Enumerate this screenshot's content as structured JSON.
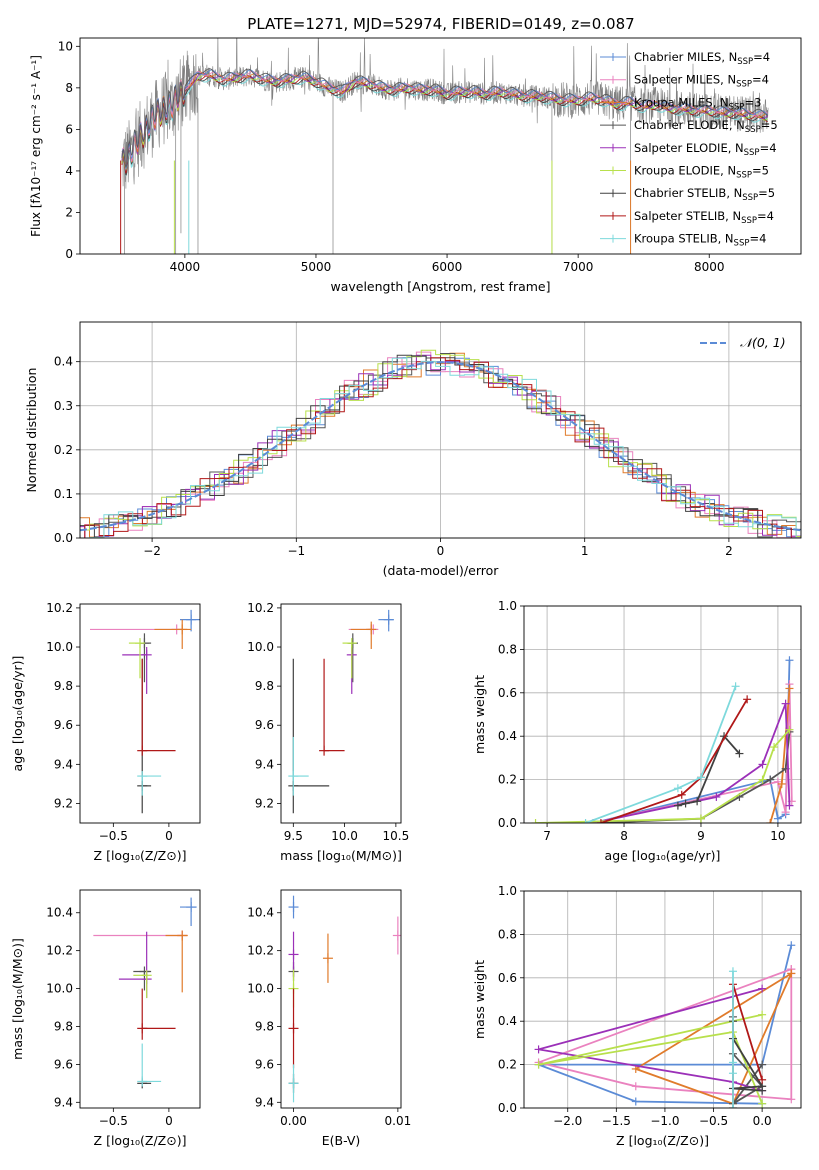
{
  "figure": {
    "title": "PLATE=1271, MJD=52974, FIBERID=0149, z=0.087"
  },
  "colors": {
    "cm": "#5b8bd6",
    "sm": "#ea82bf",
    "km": "#e07b2b",
    "ce": "#555555",
    "se": "#9b30b8",
    "ke": "#b8e04c",
    "cs": "#404040",
    "ss": "#b01818",
    "ks": "#7ed9dc",
    "obs": "#808080",
    "grid": "#b0b0b0"
  },
  "models": [
    {
      "key": "cm",
      "label": "Chabrier MILES, N",
      "sub": "SSP",
      "n": "=4"
    },
    {
      "key": "sm",
      "label": "Salpeter MILES, N",
      "sub": "SSP",
      "n": "=4"
    },
    {
      "key": "km",
      "label": "Kroupa MILES, N",
      "sub": "SSP",
      "n": "=3"
    },
    {
      "key": "ce",
      "label": "Chabrier ELODIE, N",
      "sub": "SSP",
      "n": "=5"
    },
    {
      "key": "se",
      "label": "Salpeter ELODIE, N",
      "sub": "SSP",
      "n": "=4"
    },
    {
      "key": "ke",
      "label": "Kroupa ELODIE, N",
      "sub": "SSP",
      "n": "=5"
    },
    {
      "key": "cs",
      "label": "Chabrier STELIB, N",
      "sub": "SSP",
      "n": "=5"
    },
    {
      "key": "ss",
      "label": "Salpeter STELIB, N",
      "sub": "SSP",
      "n": "=4"
    },
    {
      "key": "ks",
      "label": "Kroupa STELIB, N",
      "sub": "SSP",
      "n": "=4"
    }
  ],
  "chart_data": [
    {
      "id": "spectrum",
      "type": "line",
      "title": "PLATE=1271, MJD=52974, FIBERID=0149, z=0.087",
      "xlabel": "wavelength [Angstrom, rest frame]",
      "ylabel": "Flux [fλ10⁻¹⁷ erg cm⁻² s⁻¹ A⁻¹]",
      "xlim": [
        3200,
        8700
      ],
      "ylim": [
        0,
        10.4
      ],
      "xticks": [
        4000,
        5000,
        6000,
        7000,
        8000
      ],
      "yticks": [
        0,
        2,
        4,
        6,
        8,
        10
      ],
      "continuum": {
        "x": [
          3520,
          3560,
          3620,
          3700,
          3750,
          3800,
          3850,
          3900,
          3950,
          4000,
          4050,
          4100,
          4200,
          4300,
          4400,
          4500,
          4600,
          4700,
          4800,
          4900,
          5000,
          5100,
          5200,
          5300,
          5400,
          5500,
          5600,
          5700,
          5800,
          5900,
          6000,
          6100,
          6200,
          6300,
          6400,
          6500,
          6600,
          6700,
          6800,
          6900,
          7000,
          7100,
          7200,
          7300,
          7400,
          7500,
          7600,
          7700,
          7800,
          7900,
          8000,
          8100,
          8200,
          8300,
          8450
        ],
        "y": [
          4.4,
          4.6,
          5.2,
          6.0,
          6.4,
          6.8,
          7.0,
          7.1,
          7.6,
          7.9,
          8.2,
          8.6,
          8.6,
          8.4,
          8.5,
          8.6,
          8.4,
          8.3,
          8.4,
          8.5,
          8.3,
          8.0,
          7.8,
          8.3,
          8.2,
          8.0,
          7.9,
          8.0,
          7.9,
          7.9,
          7.7,
          7.8,
          7.8,
          7.7,
          7.8,
          7.7,
          7.6,
          7.6,
          7.5,
          7.4,
          7.4,
          7.5,
          7.4,
          7.2,
          7.3,
          7.1,
          7.2,
          7.0,
          7.0,
          6.9,
          6.9,
          6.8,
          6.8,
          6.7,
          6.6
        ]
      },
      "legend_position": "upper right"
    },
    {
      "id": "residuals",
      "type": "histogram",
      "xlabel": "(data-model)/error",
      "ylabel": "Normed distribution",
      "xlim": [
        -2.5,
        2.5
      ],
      "ylim": [
        0,
        0.49
      ],
      "xticks": [
        -2,
        -1,
        0,
        1,
        2
      ],
      "yticks": [
        0.0,
        0.1,
        0.2,
        0.3,
        0.4
      ],
      "reference_curve": "N(0,1)",
      "legend_label": "𝒩(0, 1)",
      "legend_position": "upper right"
    },
    {
      "id": "age-vs-Z",
      "type": "scatter",
      "xlabel": "Z [log₁₀(Z/Z⊙)]",
      "ylabel": "age  [log₁₀(age/yr)]",
      "xlim": [
        -0.8,
        0.28
      ],
      "ylim": [
        9.1,
        10.22
      ],
      "xticks": [
        -0.5,
        0.0
      ],
      "yticks": [
        9.2,
        9.4,
        9.6,
        9.8,
        10.0,
        10.2
      ],
      "points": [
        {
          "m": "cm",
          "x": 0.2,
          "y": 10.14,
          "xe": [
            0.1,
            0.08
          ],
          "ye": [
            0.06,
            0.05
          ]
        },
        {
          "m": "sm",
          "x": 0.07,
          "y": 10.09,
          "xe": [
            0.78,
            0.0
          ],
          "ye": [
            0.0,
            0.0
          ]
        },
        {
          "m": "km",
          "x": 0.12,
          "y": 10.09,
          "xe": [
            0.25,
            0.08
          ],
          "ye": [
            0.1,
            0.05
          ]
        },
        {
          "m": "ce",
          "x": -0.22,
          "y": 10.02,
          "xe": [
            0.04,
            0.06
          ],
          "ye": [
            0.2,
            0.05
          ]
        },
        {
          "m": "se",
          "x": -0.2,
          "y": 9.96,
          "xe": [
            0.22,
            0.0
          ],
          "ye": [
            0.2,
            0.04
          ]
        },
        {
          "m": "ke",
          "x": -0.26,
          "y": 10.02,
          "xe": [
            0.1,
            0.0
          ],
          "ye": [
            0.18,
            0.0
          ]
        },
        {
          "m": "cs",
          "x": -0.24,
          "y": 9.29,
          "xe": [
            0.0,
            0.08
          ],
          "ye": [
            0.14,
            0.65
          ]
        },
        {
          "m": "ss",
          "x": -0.24,
          "y": 9.47,
          "xe": [
            0.0,
            0.3
          ],
          "ye": [
            0.0,
            0.47
          ]
        },
        {
          "m": "ks",
          "x": -0.24,
          "y": 9.34,
          "xe": [
            0.0,
            0.17
          ],
          "ye": [
            0.1,
            0.0
          ]
        }
      ]
    },
    {
      "id": "age-vs-mass",
      "type": "scatter",
      "xlabel": "mass [log₁₀(M/M⊙)]",
      "ylabel": "",
      "xlim": [
        9.38,
        10.55
      ],
      "ylim": [
        9.1,
        10.22
      ],
      "xticks": [
        9.5,
        10.0,
        10.5
      ],
      "yticks": [
        9.2,
        9.4,
        9.6,
        9.8,
        10.0,
        10.2
      ],
      "points": [
        {
          "m": "cm",
          "x": 10.43,
          "y": 10.14,
          "xe": [
            0.1,
            0.05
          ],
          "ye": [
            0.06,
            0.05
          ]
        },
        {
          "m": "sm",
          "x": 10.28,
          "y": 10.09,
          "xe": [
            0.24,
            0.0
          ],
          "ye": [
            0.0,
            0.0
          ]
        },
        {
          "m": "km",
          "x": 10.26,
          "y": 10.09,
          "xe": [
            0.2,
            0.0
          ],
          "ye": [
            0.1,
            0.04
          ]
        },
        {
          "m": "ce",
          "x": 10.08,
          "y": 10.02,
          "xe": [
            0.04,
            0.05
          ],
          "ye": [
            0.2,
            0.05
          ]
        },
        {
          "m": "se",
          "x": 10.07,
          "y": 9.96,
          "xe": [
            0.01,
            0.0
          ],
          "ye": [
            0.2,
            0.04
          ]
        },
        {
          "m": "ke",
          "x": 10.07,
          "y": 10.02,
          "xe": [
            0.09,
            0.0
          ],
          "ye": [
            0.18,
            0.0
          ]
        },
        {
          "m": "cs",
          "x": 9.5,
          "y": 9.29,
          "xe": [
            0.0,
            0.35
          ],
          "ye": [
            0.14,
            0.65
          ]
        },
        {
          "m": "ss",
          "x": 9.8,
          "y": 9.47,
          "xe": [
            0.0,
            0.2
          ],
          "ye": [
            0.0,
            0.47
          ]
        },
        {
          "m": "ks",
          "x": 9.5,
          "y": 9.34,
          "xe": [
            0.0,
            0.15
          ],
          "ye": [
            0.1,
            0.2
          ]
        }
      ]
    },
    {
      "id": "weight-vs-age",
      "type": "line",
      "xlabel": "age  [log₁₀(age/yr)]",
      "ylabel": "mass weight",
      "xlim": [
        6.7,
        10.3
      ],
      "ylim": [
        0.0,
        1.0
      ],
      "xticks": [
        7,
        8,
        9,
        10
      ],
      "yticks": [
        0.0,
        0.2,
        0.4,
        0.6,
        0.8,
        1.0
      ],
      "series": [
        {
          "m": "cm",
          "x": [
            7.6,
            9.9,
            10.0,
            10.1,
            10.15
          ],
          "y": [
            0.0,
            0.2,
            0.02,
            0.04,
            0.75
          ]
        },
        {
          "m": "sm",
          "x": [
            7.6,
            10.0,
            10.1,
            10.15,
            10.18
          ],
          "y": [
            0.0,
            0.19,
            0.05,
            0.64,
            0.1
          ]
        },
        {
          "m": "km",
          "x": [
            9.9,
            10.05,
            10.15
          ],
          "y": [
            0.0,
            0.18,
            0.62
          ]
        },
        {
          "m": "ce",
          "x": [
            7.6,
            9.0,
            9.5,
            9.9,
            10.1,
            10.15
          ],
          "y": [
            0.0,
            0.02,
            0.12,
            0.2,
            0.25,
            0.42
          ]
        },
        {
          "m": "se",
          "x": [
            7.6,
            9.2,
            9.8,
            10.1,
            10.15
          ],
          "y": [
            0.0,
            0.12,
            0.27,
            0.55,
            0.08
          ]
        },
        {
          "m": "ke",
          "x": [
            6.85,
            9.0,
            9.8,
            9.95,
            10.15
          ],
          "y": [
            0.0,
            0.02,
            0.2,
            0.35,
            0.43
          ]
        },
        {
          "m": "cs",
          "x": [
            8.7,
            8.8,
            8.95,
            9.3,
            9.5
          ],
          "y": [
            0.08,
            0.09,
            0.1,
            0.4,
            0.32
          ]
        },
        {
          "m": "ss",
          "x": [
            7.7,
            8.75,
            9.0,
            9.6
          ],
          "y": [
            0.0,
            0.13,
            0.21,
            0.57
          ]
        },
        {
          "m": "ks",
          "x": [
            7.5,
            8.7,
            9.0,
            9.45
          ],
          "y": [
            0.0,
            0.16,
            0.21,
            0.63
          ]
        }
      ]
    },
    {
      "id": "mass-vs-Z",
      "type": "scatter",
      "xlabel": "Z [log₁₀(Z/Z⊙)]",
      "ylabel": "mass [log₁₀(M/M⊙)]",
      "xlim": [
        -0.8,
        0.28
      ],
      "ylim": [
        9.37,
        10.52
      ],
      "xticks": [
        -0.5,
        0.0
      ],
      "yticks": [
        9.4,
        9.6,
        9.8,
        10.0,
        10.2,
        10.4
      ],
      "points": [
        {
          "m": "cm",
          "x": 0.2,
          "y": 10.43,
          "xe": [
            0.1,
            0.05
          ],
          "ye": [
            0.1,
            0.05
          ]
        },
        {
          "m": "sm",
          "x": 0.12,
          "y": 10.28,
          "xe": [
            0.8,
            0.0
          ],
          "ye": [
            0.0,
            0.0
          ]
        },
        {
          "m": "km",
          "x": 0.12,
          "y": 10.28,
          "xe": [
            0.15,
            0.05
          ],
          "ye": [
            0.3,
            0.0
          ]
        },
        {
          "m": "ce",
          "x": -0.22,
          "y": 10.09,
          "xe": [
            0.1,
            0.06
          ],
          "ye": [
            0.1,
            0.0
          ]
        },
        {
          "m": "se",
          "x": -0.2,
          "y": 10.05,
          "xe": [
            0.25,
            0.0
          ],
          "ye": [
            0.1,
            0.25
          ]
        },
        {
          "m": "ke",
          "x": -0.2,
          "y": 10.07,
          "xe": [
            0.12,
            0.0
          ],
          "ye": [
            0.12,
            0.0
          ]
        },
        {
          "m": "cs",
          "x": -0.24,
          "y": 9.5,
          "xe": [
            0.0,
            0.08
          ],
          "ye": [
            0.0,
            0.0
          ]
        },
        {
          "m": "ss",
          "x": -0.24,
          "y": 9.79,
          "xe": [
            0.0,
            0.3
          ],
          "ye": [
            0.06,
            0.21
          ]
        },
        {
          "m": "ks",
          "x": -0.24,
          "y": 9.51,
          "xe": [
            0.0,
            0.17
          ],
          "ye": [
            0.0,
            0.2
          ]
        }
      ]
    },
    {
      "id": "mass-vs-EBV",
      "type": "scatter",
      "xlabel": "E(B-V)",
      "ylabel": "",
      "xlim": [
        -0.0012,
        0.0103
      ],
      "ylim": [
        9.37,
        10.52
      ],
      "xticks": [
        0.0,
        0.01
      ],
      "xticklabels": [
        "0.00",
        "0.01"
      ],
      "yticks": [
        9.4,
        9.6,
        9.8,
        10.0,
        10.2,
        10.4
      ],
      "points": [
        {
          "m": "cm",
          "x": 0.0,
          "y": 10.43,
          "ye": [
            0.06,
            0.06
          ]
        },
        {
          "m": "sm",
          "x": 0.01,
          "y": 10.28,
          "ye": [
            0.1,
            0.1
          ]
        },
        {
          "m": "km",
          "x": 0.0033,
          "y": 10.16,
          "ye": [
            0.13,
            0.13
          ]
        },
        {
          "m": "ce",
          "x": 0.0,
          "y": 10.09,
          "ye": [
            0.05,
            0.05
          ]
        },
        {
          "m": "se",
          "x": 0.0,
          "y": 10.18,
          "ye": [
            0.12,
            0.12
          ]
        },
        {
          "m": "ke",
          "x": 0.0,
          "y": 10.0,
          "ye": [
            0.1,
            0.1
          ]
        },
        {
          "m": "cs",
          "x": 0.0,
          "y": 9.5,
          "ye": [
            0.05,
            0.05
          ]
        },
        {
          "m": "ss",
          "x": 0.0,
          "y": 9.79,
          "ye": [
            0.21,
            0.21
          ]
        },
        {
          "m": "ks",
          "x": 0.0,
          "y": 9.5,
          "ye": [
            0.1,
            0.1
          ]
        }
      ]
    },
    {
      "id": "weight-vs-Z",
      "type": "line",
      "xlabel": "Z [log₁₀(Z/Z⊙)]",
      "ylabel": "mass weight",
      "xlim": [
        -2.45,
        0.4
      ],
      "ylim": [
        0.0,
        1.0
      ],
      "xticks": [
        -2.0,
        -1.5,
        -1.0,
        -0.5,
        0.0
      ],
      "yticks": [
        0.0,
        0.2,
        0.4,
        0.6,
        0.8,
        1.0
      ],
      "series": [
        {
          "m": "cm",
          "x": [
            0.3,
            0.0,
            -2.3,
            -1.3,
            0.0
          ],
          "y": [
            0.75,
            0.2,
            0.2,
            0.03,
            0.02
          ]
        },
        {
          "m": "sm",
          "x": [
            0.3,
            0.3,
            -1.3,
            -2.3,
            0.3
          ],
          "y": [
            0.64,
            0.04,
            0.1,
            0.21,
            0.64
          ]
        },
        {
          "m": "km",
          "x": [
            0.3,
            -1.3,
            -0.3,
            0.3
          ],
          "y": [
            0.62,
            0.18,
            0.02,
            0.62
          ]
        },
        {
          "m": "ce",
          "x": [
            -0.3,
            -0.3,
            0.0,
            -0.3,
            0.0
          ],
          "y": [
            0.42,
            0.25,
            0.1,
            0.02,
            0.2
          ]
        },
        {
          "m": "se",
          "x": [
            0.0,
            -2.3,
            -0.3,
            0.0
          ],
          "y": [
            0.55,
            0.27,
            0.12,
            0.08
          ]
        },
        {
          "m": "ke",
          "x": [
            0.0,
            -2.3,
            -0.3,
            0.0
          ],
          "y": [
            0.43,
            0.2,
            0.35,
            0.02
          ]
        },
        {
          "m": "cs",
          "x": [
            -0.3,
            -0.3,
            0.0,
            -0.3,
            0.0
          ],
          "y": [
            0.4,
            0.32,
            0.1,
            0.09,
            0.08
          ]
        },
        {
          "m": "ss",
          "x": [
            -0.3,
            -0.3,
            0.0
          ],
          "y": [
            0.0,
            0.57,
            0.13
          ]
        },
        {
          "m": "ks",
          "x": [
            -0.3,
            -0.3,
            -0.3,
            -0.3
          ],
          "y": [
            0.0,
            0.63,
            0.16,
            0.21
          ]
        }
      ]
    }
  ]
}
